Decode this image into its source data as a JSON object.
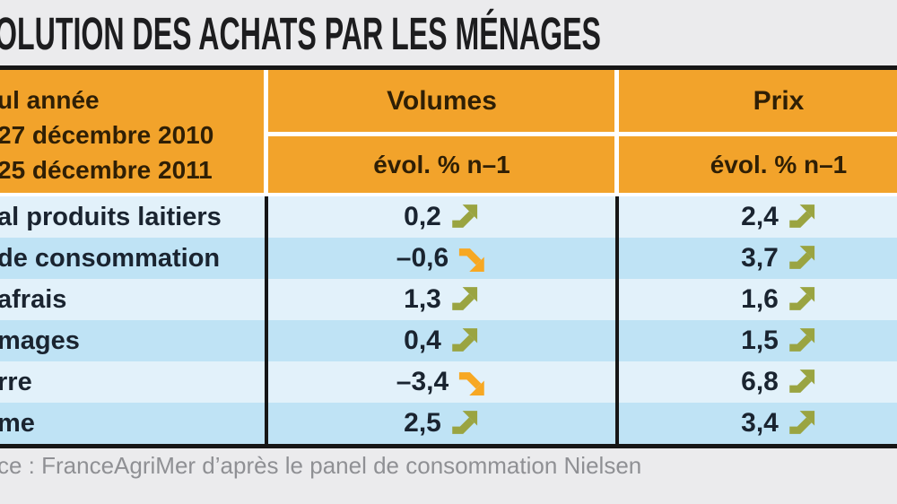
{
  "title": "OLUTION DES ACHATS PAR LES MÉNAGES",
  "table": {
    "period_lines": [
      "ul année",
      "27 décembre 2010",
      "25 décembre 2011"
    ],
    "col_groups": [
      {
        "label": "Volumes",
        "sub": "évol. % n–1"
      },
      {
        "label": "Prix",
        "sub": "évol. % n–1"
      }
    ],
    "rows": [
      {
        "label": "al produits laitiers",
        "volumes": {
          "value": "0,2",
          "trend": "up"
        },
        "prix": {
          "value": "2,4",
          "trend": "up"
        }
      },
      {
        "label": "de consommation",
        "volumes": {
          "value": "–0,6",
          "trend": "down"
        },
        "prix": {
          "value": "3,7",
          "trend": "up"
        }
      },
      {
        "label": "afrais",
        "volumes": {
          "value": "1,3",
          "trend": "up"
        },
        "prix": {
          "value": "1,6",
          "trend": "up"
        }
      },
      {
        "label": "mages",
        "volumes": {
          "value": "0,4",
          "trend": "up"
        },
        "prix": {
          "value": "1,5",
          "trend": "up"
        }
      },
      {
        "label": "rre",
        "volumes": {
          "value": "–3,4",
          "trend": "down"
        },
        "prix": {
          "value": "6,8",
          "trend": "up"
        }
      },
      {
        "label": "me",
        "volumes": {
          "value": "2,5",
          "trend": "up"
        },
        "prix": {
          "value": "3,4",
          "trend": "up"
        }
      }
    ]
  },
  "source": "ce : FranceAgriMer d’après le panel de consommation Nielsen",
  "colors": {
    "header_orange": "#f2a32b",
    "row_pale_blue": "#e2f1fa",
    "row_dark_blue": "#bfe3f5",
    "arrow_up": "#9aa441",
    "arrow_down": "#f7a823",
    "rule_black": "#161616",
    "background_gray": "#ebebed",
    "source_gray": "#8f9094"
  },
  "chart_data": {
    "type": "table",
    "title": "OLUTION DES ACHATS PAR LES MÉNAGES",
    "period": [
      "ul année",
      "27 décembre 2010",
      "25 décembre 2011"
    ],
    "columns": [
      "Volumes évol. % n–1",
      "Prix évol. % n–1"
    ],
    "rows": [
      {
        "category": "al produits laitiers",
        "volumes_evol_pct": 0.2,
        "volumes_trend": "up",
        "prix_evol_pct": 2.4,
        "prix_trend": "up"
      },
      {
        "category": "de consommation",
        "volumes_evol_pct": -0.6,
        "volumes_trend": "down",
        "prix_evol_pct": 3.7,
        "prix_trend": "up"
      },
      {
        "category": "afrais",
        "volumes_evol_pct": 1.3,
        "volumes_trend": "up",
        "prix_evol_pct": 1.6,
        "prix_trend": "up"
      },
      {
        "category": "mages",
        "volumes_evol_pct": 0.4,
        "volumes_trend": "up",
        "prix_evol_pct": 1.5,
        "prix_trend": "up"
      },
      {
        "category": "rre",
        "volumes_evol_pct": -3.4,
        "volumes_trend": "down",
        "prix_evol_pct": 6.8,
        "prix_trend": "up"
      },
      {
        "category": "me",
        "volumes_evol_pct": 2.5,
        "volumes_trend": "up",
        "prix_evol_pct": 3.4,
        "prix_trend": "up"
      }
    ],
    "source": "ce : FranceAgriMer d’après le panel de consommation Nielsen"
  }
}
